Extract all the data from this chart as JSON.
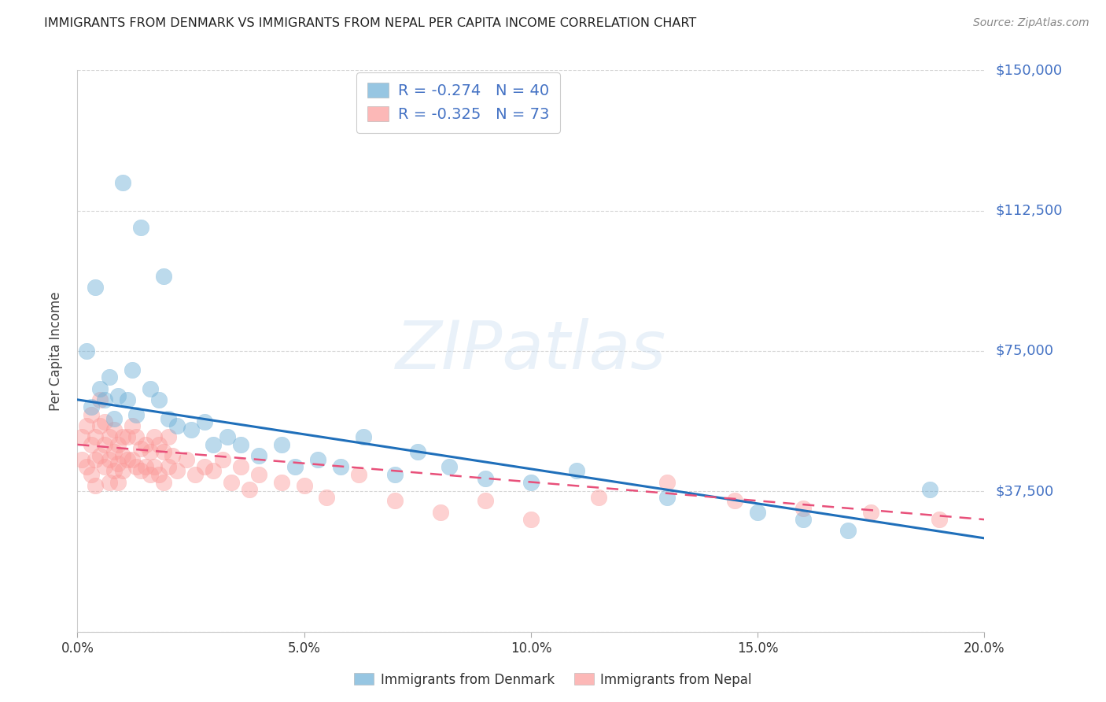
{
  "title": "IMMIGRANTS FROM DENMARK VS IMMIGRANTS FROM NEPAL PER CAPITA INCOME CORRELATION CHART",
  "source": "Source: ZipAtlas.com",
  "ylabel": "Per Capita Income",
  "xlim": [
    0.0,
    0.2
  ],
  "ylim": [
    0,
    150000
  ],
  "yticks": [
    0,
    37500,
    75000,
    112500,
    150000
  ],
  "ytick_labels": [
    "",
    "$37,500",
    "$75,000",
    "$112,500",
    "$150,000"
  ],
  "xticks": [
    0.0,
    0.05,
    0.1,
    0.15,
    0.2
  ],
  "xtick_labels": [
    "0.0%",
    "5.0%",
    "10.0%",
    "15.0%",
    "20.0%"
  ],
  "denmark_color": "#6baed6",
  "nepal_color": "#fb9a99",
  "denmark_line_color": "#1f6fba",
  "nepal_line_color": "#e8507a",
  "denmark_R": -0.274,
  "denmark_N": 40,
  "nepal_R": -0.325,
  "nepal_N": 73,
  "legend_label_denmark": "Immigrants from Denmark",
  "legend_label_nepal": "Immigrants from Nepal",
  "watermark": "ZIPatlas",
  "background_color": "#ffffff",
  "right_axis_color": "#4472c4",
  "denmark_scatter_x": [
    0.004,
    0.01,
    0.014,
    0.002,
    0.007,
    0.005,
    0.006,
    0.003,
    0.008,
    0.009,
    0.012,
    0.016,
    0.011,
    0.013,
    0.018,
    0.02,
    0.022,
    0.025,
    0.028,
    0.03,
    0.033,
    0.036,
    0.04,
    0.045,
    0.048,
    0.053,
    0.058,
    0.063,
    0.07,
    0.075,
    0.082,
    0.09,
    0.1,
    0.11,
    0.13,
    0.15,
    0.16,
    0.17,
    0.188,
    0.019
  ],
  "denmark_scatter_y": [
    92000,
    120000,
    108000,
    75000,
    68000,
    65000,
    62000,
    60000,
    57000,
    63000,
    70000,
    65000,
    62000,
    58000,
    62000,
    57000,
    55000,
    54000,
    56000,
    50000,
    52000,
    50000,
    47000,
    50000,
    44000,
    46000,
    44000,
    52000,
    42000,
    48000,
    44000,
    41000,
    40000,
    43000,
    36000,
    32000,
    30000,
    27000,
    38000,
    95000
  ],
  "nepal_scatter_x": [
    0.001,
    0.001,
    0.002,
    0.002,
    0.003,
    0.003,
    0.003,
    0.004,
    0.004,
    0.004,
    0.005,
    0.005,
    0.005,
    0.006,
    0.006,
    0.006,
    0.007,
    0.007,
    0.007,
    0.008,
    0.008,
    0.008,
    0.009,
    0.009,
    0.009,
    0.01,
    0.01,
    0.01,
    0.011,
    0.011,
    0.012,
    0.012,
    0.013,
    0.013,
    0.014,
    0.014,
    0.015,
    0.015,
    0.016,
    0.016,
    0.017,
    0.017,
    0.018,
    0.018,
    0.019,
    0.019,
    0.02,
    0.02,
    0.021,
    0.022,
    0.024,
    0.026,
    0.028,
    0.03,
    0.032,
    0.034,
    0.036,
    0.038,
    0.04,
    0.045,
    0.05,
    0.055,
    0.062,
    0.07,
    0.08,
    0.09,
    0.1,
    0.115,
    0.13,
    0.145,
    0.16,
    0.175,
    0.19
  ],
  "nepal_scatter_y": [
    52000,
    46000,
    55000,
    44000,
    58000,
    50000,
    42000,
    52000,
    46000,
    39000,
    62000,
    55000,
    47000,
    56000,
    50000,
    44000,
    52000,
    46000,
    40000,
    54000,
    48000,
    43000,
    50000,
    45000,
    40000,
    52000,
    47000,
    43000,
    52000,
    46000,
    55000,
    46000,
    52000,
    44000,
    49000,
    43000,
    50000,
    44000,
    48000,
    42000,
    52000,
    44000,
    50000,
    42000,
    48000,
    40000,
    52000,
    44000,
    47000,
    43000,
    46000,
    42000,
    44000,
    43000,
    46000,
    40000,
    44000,
    38000,
    42000,
    40000,
    39000,
    36000,
    42000,
    35000,
    32000,
    35000,
    30000,
    36000,
    40000,
    35000,
    33000,
    32000,
    30000
  ],
  "dk_trend_x": [
    0.0,
    0.2
  ],
  "dk_trend_y": [
    62000,
    25000
  ],
  "np_trend_x": [
    0.0,
    0.2
  ],
  "np_trend_y": [
    50000,
    30000
  ]
}
